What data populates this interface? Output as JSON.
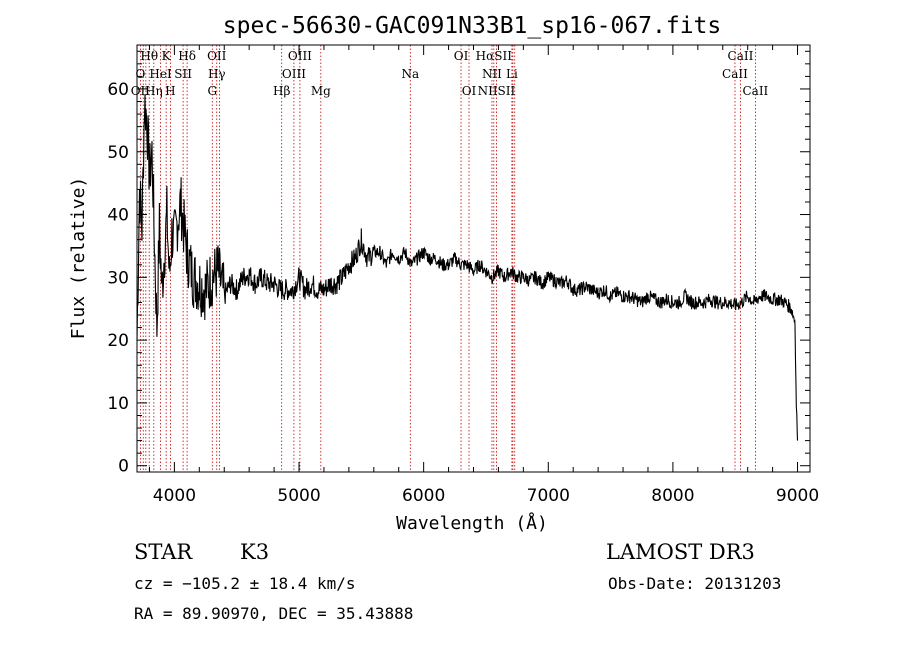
{
  "chart_data": {
    "type": "line",
    "title": "spec-56630-GAC091N33B1_sp16-067.fits",
    "xlabel": "Wavelength (Å)",
    "ylabel": "Flux (relative)",
    "xlim": [
      3700,
      9100
    ],
    "ylim": [
      -1,
      67
    ],
    "xticks": [
      4000,
      5000,
      6000,
      7000,
      8000,
      9000
    ],
    "xtick_labels": [
      "4000",
      "5000",
      "6000",
      "7000",
      "8000",
      "9000"
    ],
    "yticks": [
      0,
      10,
      20,
      30,
      40,
      50,
      60
    ],
    "ytick_labels": [
      "0",
      "10",
      "20",
      "30",
      "40",
      "50",
      "60"
    ],
    "series": [
      {
        "name": "flux",
        "x": [
          3700,
          3720,
          3740,
          3760,
          3780,
          3800,
          3820,
          3840,
          3860,
          3880,
          3900,
          3920,
          3940,
          3960,
          3980,
          4000,
          4050,
          4100,
          4150,
          4200,
          4250,
          4300,
          4350,
          4400,
          4450,
          4500,
          4550,
          4600,
          4650,
          4700,
          4750,
          4800,
          4850,
          4900,
          4950,
          5000,
          5050,
          5100,
          5150,
          5200,
          5250,
          5300,
          5350,
          5400,
          5450,
          5500,
          5550,
          5600,
          5650,
          5700,
          5750,
          5800,
          5850,
          5900,
          5950,
          6000,
          6050,
          6100,
          6150,
          6200,
          6250,
          6300,
          6350,
          6400,
          6450,
          6500,
          6550,
          6600,
          6650,
          6700,
          6750,
          6800,
          6850,
          6900,
          6950,
          7000,
          7050,
          7100,
          7150,
          7200,
          7250,
          7300,
          7350,
          7400,
          7450,
          7500,
          7550,
          7600,
          7650,
          7700,
          7750,
          7800,
          7850,
          7900,
          7950,
          8000,
          8050,
          8100,
          8150,
          8200,
          8250,
          8300,
          8350,
          8400,
          8450,
          8500,
          8550,
          8600,
          8650,
          8700,
          8750,
          8800,
          8850,
          8900,
          8950,
          8980,
          8990,
          9000
        ],
        "y": [
          20,
          44,
          38,
          58,
          55,
          46,
          50,
          36,
          22,
          38,
          28,
          34,
          40,
          30,
          37,
          36,
          42,
          34,
          30,
          29,
          28,
          30,
          31,
          27,
          29,
          28,
          30,
          30.5,
          29,
          30,
          29,
          29,
          28,
          28,
          28,
          30,
          28,
          29,
          28,
          28,
          29,
          29,
          30,
          32,
          33,
          36,
          33,
          34,
          34,
          32,
          34,
          33,
          34,
          32,
          33,
          34,
          33,
          33,
          32,
          32,
          33,
          32,
          32,
          31,
          32,
          31,
          30,
          31,
          30,
          31,
          30,
          30,
          29.5,
          30,
          29,
          30,
          29.5,
          29,
          29.5,
          28,
          28,
          28.5,
          28,
          27.5,
          28,
          27,
          27.5,
          27,
          27,
          26.5,
          26,
          27,
          26.5,
          26,
          26.5,
          26,
          26,
          27,
          26,
          26,
          26,
          26.5,
          26,
          26,
          26,
          25.5,
          26,
          27,
          26,
          27,
          27,
          26.5,
          26.5,
          26,
          25,
          23,
          10,
          4
        ]
      }
    ],
    "lines": [
      {
        "label": "Hθ",
        "wavelength": 3798,
        "row": 1
      },
      {
        "label": "K",
        "wavelength": 3934,
        "row": 1
      },
      {
        "label": "Hδ",
        "wavelength": 4102,
        "row": 1
      },
      {
        "label": "OII",
        "wavelength": 4340,
        "row": 1
      },
      {
        "label": "OIII",
        "wavelength": 5007,
        "row": 1
      },
      {
        "label": "OI",
        "wavelength": 6300,
        "row": 1
      },
      {
        "label": "HαSII",
        "wavelength": 6563,
        "row": 1
      },
      {
        "label": "CaII",
        "wavelength": 8542,
        "row": 1
      },
      {
        "label": "O",
        "wavelength": 3727,
        "row": 2
      },
      {
        "label": "HeI",
        "wavelength": 3889,
        "row": 2
      },
      {
        "label": "SII",
        "wavelength": 4070,
        "row": 2
      },
      {
        "label": "Hγ",
        "wavelength": 4340,
        "row": 2
      },
      {
        "label": "OIII",
        "wavelength": 4959,
        "row": 2
      },
      {
        "label": "Na",
        "wavelength": 5893,
        "row": 2
      },
      {
        "label": "NII",
        "wavelength": 6548,
        "row": 2
      },
      {
        "label": "Li",
        "wavelength": 6708,
        "row": 2
      },
      {
        "label": "CaII",
        "wavelength": 8498,
        "row": 2
      },
      {
        "label": "OII",
        "wavelength": 3727,
        "row": 3
      },
      {
        "label": "Hη",
        "wavelength": 3835,
        "row": 3
      },
      {
        "label": "H",
        "wavelength": 3968,
        "row": 3
      },
      {
        "label": "G",
        "wavelength": 4304,
        "row": 3
      },
      {
        "label": "Hβ",
        "wavelength": 4861,
        "row": 3
      },
      {
        "label": "Mg",
        "wavelength": 5175,
        "row": 3
      },
      {
        "label": "OI",
        "wavelength": 6364,
        "row": 3
      },
      {
        "label": "NIISII",
        "wavelength": 6584,
        "row": 3
      },
      {
        "label": "CaII",
        "wavelength": 8662,
        "row": 3
      }
    ],
    "marker_wavelengths": [
      3727,
      3750,
      3771,
      3798,
      3835,
      3889,
      3934,
      3968,
      4070,
      4102,
      4304,
      4340,
      4363,
      4861,
      4959,
      5007,
      5175,
      5893,
      6300,
      6364,
      6548,
      6563,
      6584,
      6708,
      6716,
      6731,
      8498,
      8542,
      8662
    ]
  },
  "info": {
    "class": "STAR",
    "subclass": "K3",
    "survey": "LAMOST DR3",
    "cz": "cz = −105.2 ± 18.4 km/s",
    "obs_date": "Obs-Date: 20131203",
    "radec": "RA =  89.90970, DEC =  35.43888"
  }
}
